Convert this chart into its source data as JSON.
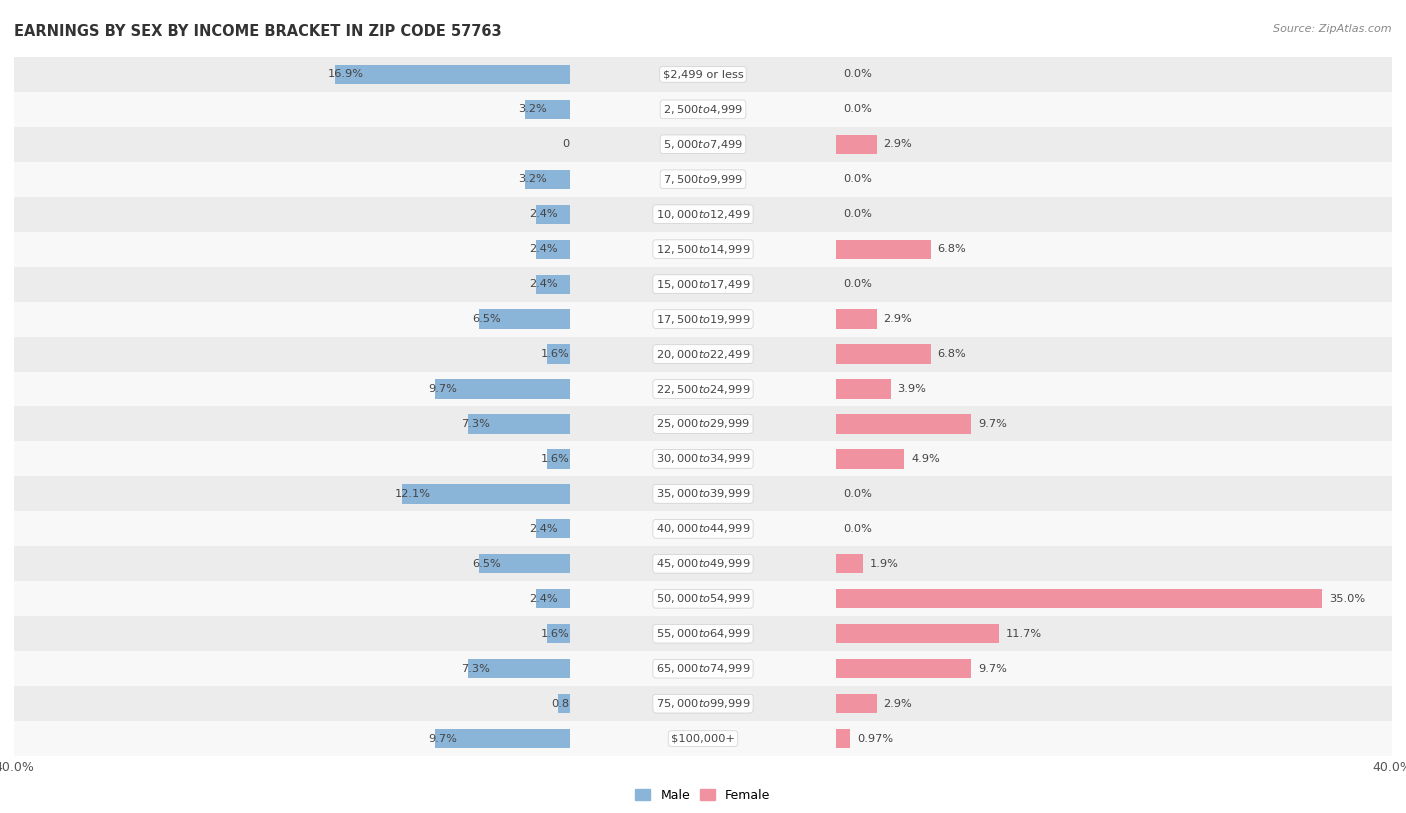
{
  "title": "EARNINGS BY SEX BY INCOME BRACKET IN ZIP CODE 57763",
  "source": "Source: ZipAtlas.com",
  "male_color": "#8ab4d8",
  "female_color": "#f0929f",
  "male_label": "Male",
  "female_label": "Female",
  "categories": [
    "$2,499 or less",
    "$2,500 to $4,999",
    "$5,000 to $7,499",
    "$7,500 to $9,999",
    "$10,000 to $12,499",
    "$12,500 to $14,999",
    "$15,000 to $17,499",
    "$17,500 to $19,999",
    "$20,000 to $22,499",
    "$22,500 to $24,999",
    "$25,000 to $29,999",
    "$30,000 to $34,999",
    "$35,000 to $39,999",
    "$40,000 to $44,999",
    "$45,000 to $49,999",
    "$50,000 to $54,999",
    "$55,000 to $64,999",
    "$65,000 to $74,999",
    "$75,000 to $99,999",
    "$100,000+"
  ],
  "male_values": [
    16.9,
    3.2,
    0.0,
    3.2,
    2.4,
    2.4,
    2.4,
    6.5,
    1.6,
    9.7,
    7.3,
    1.6,
    12.1,
    2.4,
    6.5,
    2.4,
    1.6,
    7.3,
    0.81,
    9.7
  ],
  "female_values": [
    0.0,
    0.0,
    2.9,
    0.0,
    0.0,
    6.8,
    0.0,
    2.9,
    6.8,
    3.9,
    9.7,
    4.9,
    0.0,
    0.0,
    1.9,
    35.0,
    11.7,
    9.7,
    2.9,
    0.97
  ],
  "bar_height": 0.55,
  "bg_color_even": "#ececec",
  "bg_color_odd": "#f8f8f8",
  "label_fontsize": 8.2,
  "cat_fontsize": 8.2,
  "title_fontsize": 10.5,
  "source_fontsize": 8.0,
  "x_max": 40.0,
  "x_tick_label": "40.0%"
}
